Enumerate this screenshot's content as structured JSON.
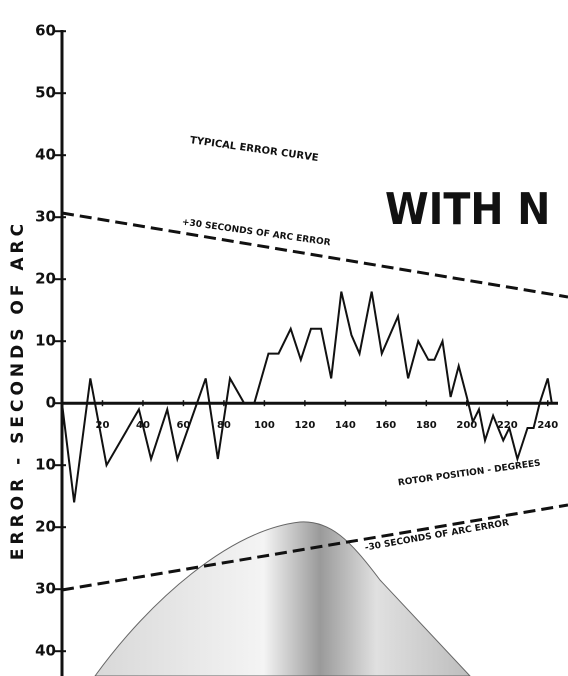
{
  "chart_data": {
    "type": "line",
    "title": "TYPICAL ERROR CURVE",
    "headline": "WITH N",
    "x_label": "ROTOR POSITION - DEGREES",
    "y_label": "ERROR - SECONDS OF ARC",
    "upper_limit_label": "+30 SECONDS OF ARC ERROR",
    "lower_limit_label": "-30 SECONDS OF ARC ERROR",
    "x": [
      0,
      6,
      14,
      22,
      38,
      44,
      52,
      57,
      71,
      77,
      83,
      90,
      95,
      102,
      107,
      113,
      118,
      123,
      128,
      133,
      138,
      143,
      147,
      153,
      158,
      166,
      171,
      176,
      181,
      184,
      188,
      192,
      196,
      200,
      203,
      206,
      209,
      213,
      218,
      221,
      225,
      230,
      233,
      236,
      240,
      242
    ],
    "values": [
      0,
      -16,
      4,
      -10,
      -1,
      -9,
      -1,
      -9,
      4,
      -9,
      4,
      0,
      0,
      8,
      8,
      12,
      7,
      12,
      12,
      4,
      18,
      11,
      8,
      18,
      8,
      14,
      4,
      10,
      7,
      7,
      10,
      1,
      6,
      1,
      -3,
      -1,
      -6,
      -2,
      -6,
      -4,
      -9,
      -4,
      -4,
      0,
      4,
      0
    ],
    "color": "#111111",
    "xlim": [
      0,
      250
    ],
    "ylim": [
      -44,
      61
    ],
    "xticks": [
      20,
      40,
      60,
      80,
      100,
      120,
      140,
      160,
      180,
      200,
      220,
      240
    ],
    "yticks": [
      60,
      50,
      40,
      30,
      20,
      10,
      0,
      {
        "value": -10,
        "label": "10"
      },
      {
        "value": -20,
        "label": "20"
      },
      {
        "value": -30,
        "label": "30"
      },
      {
        "value": -40,
        "label": "40"
      }
    ]
  }
}
